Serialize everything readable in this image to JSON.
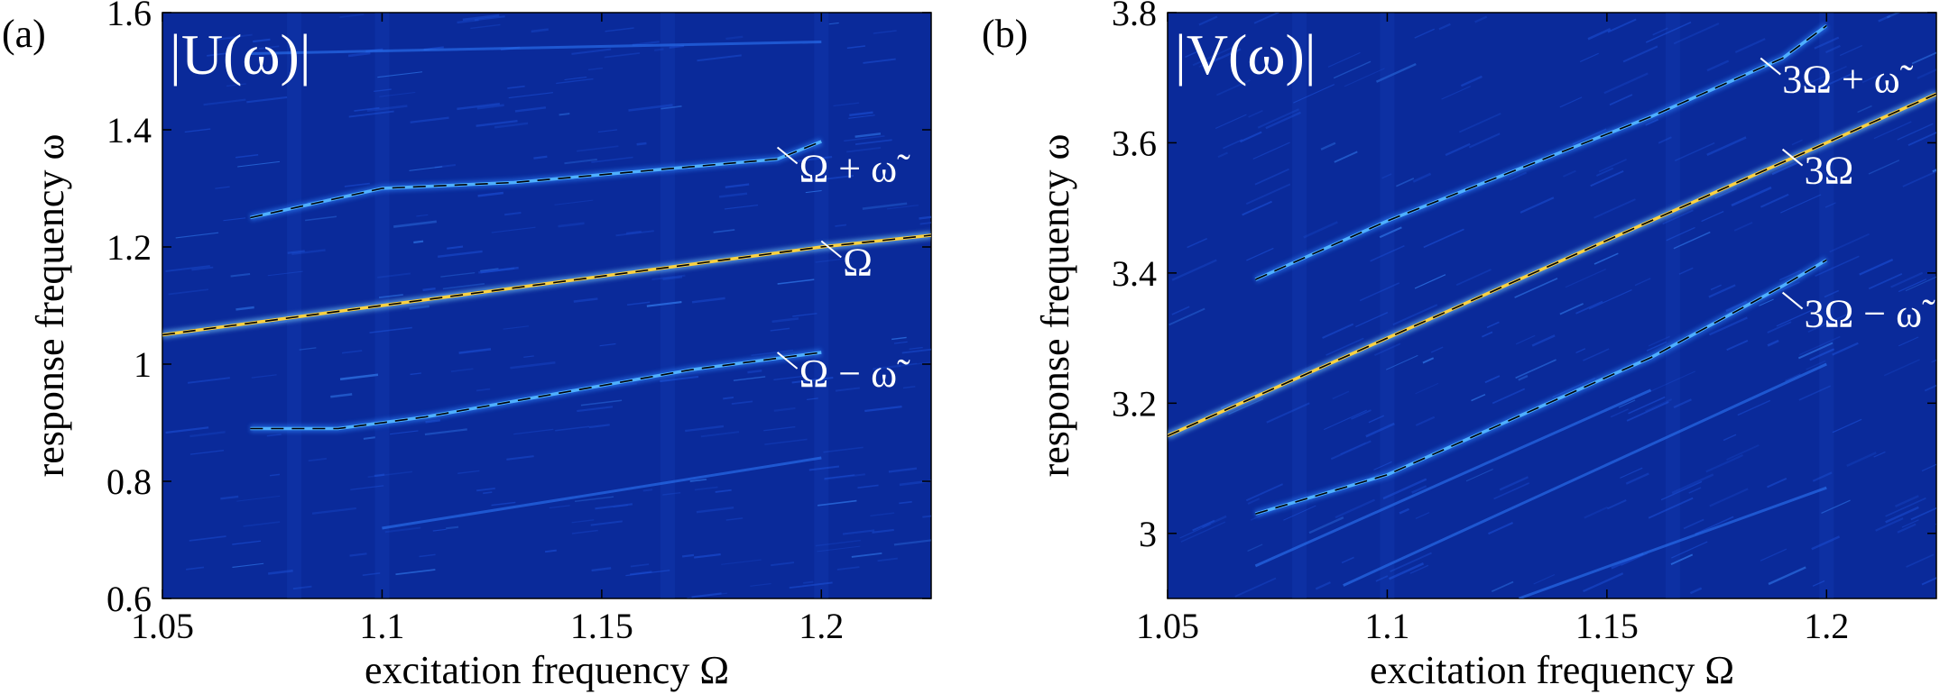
{
  "chart_data": [
    {
      "type": "heatmap",
      "panel_label": "(a)",
      "title": "|U(ω)|",
      "xlabel": "excitation frequency Ω",
      "ylabel": "response frequency ω",
      "xlim": [
        1.05,
        1.225
      ],
      "ylim": [
        0.6,
        1.6
      ],
      "xticks": [
        1.05,
        1.1,
        1.15,
        1.2
      ],
      "xtick_labels": [
        "1.05",
        "1.1",
        "1.15",
        "1.2"
      ],
      "yticks": [
        0.6,
        0.8,
        1.0,
        1.2,
        1.4,
        1.6
      ],
      "ytick_labels": [
        "0.6",
        "0.8",
        "1",
        "1.2",
        "1.4",
        "1.6"
      ],
      "colors": {
        "background": "#0a2a9a",
        "ridge": "#2f86ff",
        "strong": "#ffd23f"
      },
      "series": [
        {
          "name": "Ω + ω̃",
          "x": [
            1.07,
            1.1,
            1.13,
            1.16,
            1.19,
            1.2
          ],
          "y": [
            1.25,
            1.3,
            1.31,
            1.33,
            1.35,
            1.38
          ]
        },
        {
          "name": "Ω",
          "x": [
            1.05,
            1.08,
            1.11,
            1.14,
            1.17,
            1.2,
            1.225
          ],
          "y": [
            1.05,
            1.08,
            1.11,
            1.14,
            1.17,
            1.2,
            1.22
          ]
        },
        {
          "name": "Ω − ω̃",
          "x": [
            1.07,
            1.09,
            1.11,
            1.14,
            1.17,
            1.2
          ],
          "y": [
            0.89,
            0.89,
            0.91,
            0.95,
            0.99,
            1.02
          ]
        }
      ],
      "annotations": [
        {
          "text": "Ω + ω̃",
          "x": 1.19,
          "y": 1.37
        },
        {
          "text": "Ω",
          "x": 1.2,
          "y": 1.21
        },
        {
          "text": "Ω − ω̃",
          "x": 1.19,
          "y": 1.02
        }
      ]
    },
    {
      "type": "heatmap",
      "panel_label": "(b)",
      "title": "|V(ω)|",
      "xlabel": "excitation frequency Ω",
      "ylabel": "response frequency ω",
      "xlim": [
        1.05,
        1.225
      ],
      "ylim": [
        2.9,
        3.8
      ],
      "xticks": [
        1.05,
        1.1,
        1.15,
        1.2
      ],
      "xtick_labels": [
        "1.05",
        "1.1",
        "1.15",
        "1.2"
      ],
      "yticks": [
        3.0,
        3.2,
        3.4,
        3.6,
        3.8
      ],
      "ytick_labels": [
        "3",
        "3.2",
        "3.4",
        "3.6",
        "3.8"
      ],
      "colors": {
        "background": "#0a2a9a",
        "ridge": "#2f86ff",
        "strong": "#ffd23f"
      },
      "series": [
        {
          "name": "3Ω + ω̃",
          "x": [
            1.07,
            1.1,
            1.13,
            1.16,
            1.19,
            1.2
          ],
          "y": [
            3.39,
            3.48,
            3.56,
            3.64,
            3.73,
            3.78
          ]
        },
        {
          "name": "3Ω",
          "x": [
            1.05,
            1.08,
            1.11,
            1.14,
            1.17,
            1.2,
            1.225
          ],
          "y": [
            3.15,
            3.24,
            3.33,
            3.42,
            3.51,
            3.6,
            3.675
          ]
        },
        {
          "name": "3Ω − ω̃",
          "x": [
            1.07,
            1.1,
            1.13,
            1.16,
            1.19,
            1.2
          ],
          "y": [
            3.03,
            3.09,
            3.18,
            3.27,
            3.38,
            3.42
          ]
        }
      ],
      "annotations": [
        {
          "text": "3Ω + ω̃",
          "x": 1.185,
          "y": 3.73
        },
        {
          "text": "3Ω",
          "x": 1.19,
          "y": 3.59
        },
        {
          "text": "3Ω − ω̃",
          "x": 1.19,
          "y": 3.37
        }
      ]
    }
  ]
}
